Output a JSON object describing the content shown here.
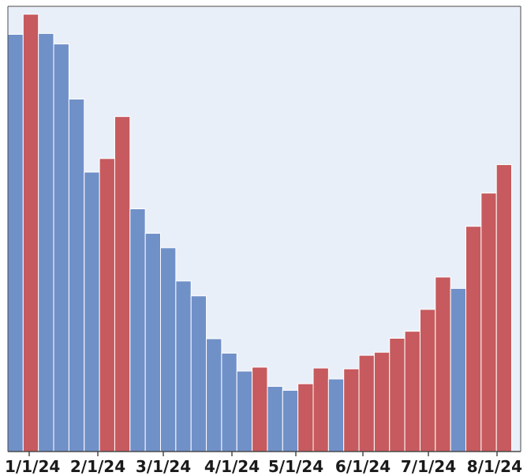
{
  "chart_data": {
    "type": "bar",
    "title": "",
    "xlabel": "",
    "ylabel": "",
    "x_tick_labels": [
      "1/1/24",
      "2/1/24",
      "3/1/24",
      "4/1/24",
      "5/1/24",
      "6/1/24",
      "7/1/24",
      "8/1/24"
    ],
    "ylim": [
      0,
      100
    ],
    "grid": false,
    "legend": "none",
    "colors": {
      "plot_background": "#e9eff8",
      "frame": "#4a4a4a",
      "bar_blue": "#7090c8",
      "bar_red": "#c65a5e",
      "bar_edge": "#ffffff"
    },
    "bars": [
      {
        "value": 95.4,
        "color": "blue"
      },
      {
        "value": 100.0,
        "color": "red"
      },
      {
        "value": 95.6,
        "color": "blue"
      },
      {
        "value": 93.2,
        "color": "blue"
      },
      {
        "value": 80.6,
        "color": "blue"
      },
      {
        "value": 63.9,
        "color": "blue"
      },
      {
        "value": 67.0,
        "color": "red"
      },
      {
        "value": 76.6,
        "color": "red"
      },
      {
        "value": 55.5,
        "color": "blue"
      },
      {
        "value": 49.9,
        "color": "blue"
      },
      {
        "value": 46.6,
        "color": "blue"
      },
      {
        "value": 39.0,
        "color": "blue"
      },
      {
        "value": 35.6,
        "color": "blue"
      },
      {
        "value": 25.8,
        "color": "blue"
      },
      {
        "value": 22.5,
        "color": "blue"
      },
      {
        "value": 18.4,
        "color": "blue"
      },
      {
        "value": 19.3,
        "color": "red"
      },
      {
        "value": 14.9,
        "color": "blue"
      },
      {
        "value": 14.0,
        "color": "blue"
      },
      {
        "value": 15.5,
        "color": "red"
      },
      {
        "value": 19.1,
        "color": "red"
      },
      {
        "value": 16.6,
        "color": "blue"
      },
      {
        "value": 18.9,
        "color": "red"
      },
      {
        "value": 22.0,
        "color": "red"
      },
      {
        "value": 22.7,
        "color": "red"
      },
      {
        "value": 25.9,
        "color": "red"
      },
      {
        "value": 27.5,
        "color": "red"
      },
      {
        "value": 32.5,
        "color": "red"
      },
      {
        "value": 39.9,
        "color": "red"
      },
      {
        "value": 37.3,
        "color": "blue"
      },
      {
        "value": 51.5,
        "color": "red"
      },
      {
        "value": 59.1,
        "color": "red"
      },
      {
        "value": 65.6,
        "color": "red"
      }
    ]
  }
}
